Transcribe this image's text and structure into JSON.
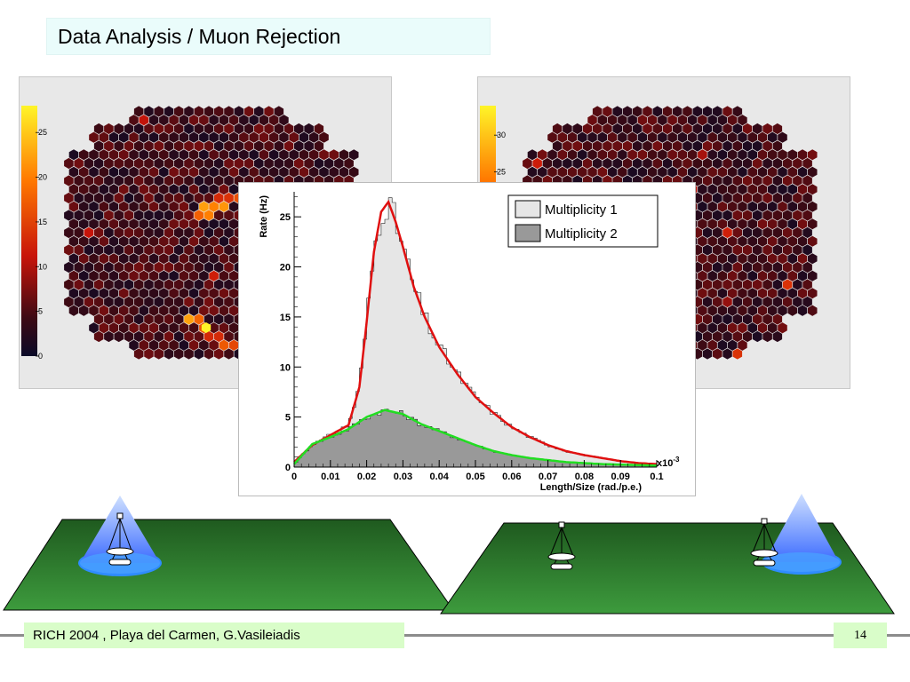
{
  "slide": {
    "title": "Data Analysis / Muon Rejection",
    "footer": "RICH 2004 , Playa del Carmen, G.Vasileiadis",
    "page_number": "14"
  },
  "camera_left": {
    "scale_ticks": [
      "25",
      "20",
      "15",
      "10",
      "5",
      "0"
    ],
    "scale_max": 28,
    "ring_hot_pixel": 28
  },
  "camera_right": {
    "scale_ticks": [
      "30",
      "25"
    ],
    "scale_max": 34
  },
  "colors": {
    "multiplicity_1": "#e6e6e6",
    "multiplicity_2": "#999999",
    "fit_1": "#e01010",
    "fit_2": "#22dd22",
    "ground": "#2f7a2f",
    "cone": "#4a7bff"
  },
  "chart_data": {
    "type": "area",
    "title": "",
    "xlabel": "Length/Size (rad./p.e.)",
    "ylabel": "Rate (Hz)",
    "x_multiplier_label": "x10",
    "x_multiplier_exp": "-3",
    "xlim": [
      0,
      0.1
    ],
    "ylim": [
      0,
      27.5
    ],
    "x_ticks": [
      "0",
      "0.01",
      "0.02",
      "0.03",
      "0.04",
      "0.05",
      "0.06",
      "0.07",
      "0.08",
      "0.09",
      "0.1"
    ],
    "y_ticks": [
      "0",
      "5",
      "10",
      "15",
      "20",
      "25"
    ],
    "legend_position": "top-right",
    "series": [
      {
        "name": "Multiplicity 1",
        "x": [
          0,
          0.005,
          0.01,
          0.015,
          0.018,
          0.02,
          0.022,
          0.024,
          0.026,
          0.028,
          0.03,
          0.033,
          0.036,
          0.04,
          0.045,
          0.05,
          0.055,
          0.06,
          0.065,
          0.07,
          0.075,
          0.08,
          0.085,
          0.09,
          0.095,
          0.1
        ],
        "values": [
          0.5,
          2.2,
          3.2,
          4.2,
          8.0,
          14.5,
          21.5,
          25.5,
          26.5,
          24.5,
          22.0,
          18.0,
          15.0,
          12.0,
          9.3,
          7.0,
          5.4,
          4.0,
          3.0,
          2.2,
          1.6,
          1.2,
          0.9,
          0.6,
          0.4,
          0.3
        ]
      },
      {
        "name": "Multiplicity 2",
        "x": [
          0,
          0.005,
          0.01,
          0.015,
          0.02,
          0.025,
          0.03,
          0.035,
          0.04,
          0.045,
          0.05,
          0.055,
          0.06,
          0.065,
          0.07,
          0.075,
          0.08,
          0.085,
          0.09,
          0.095,
          0.1
        ],
        "values": [
          0.3,
          2.3,
          3.0,
          3.8,
          5.0,
          5.7,
          5.3,
          4.3,
          3.6,
          2.9,
          2.2,
          1.6,
          1.2,
          0.9,
          0.7,
          0.5,
          0.4,
          0.3,
          0.25,
          0.2,
          0.15
        ]
      }
    ]
  }
}
